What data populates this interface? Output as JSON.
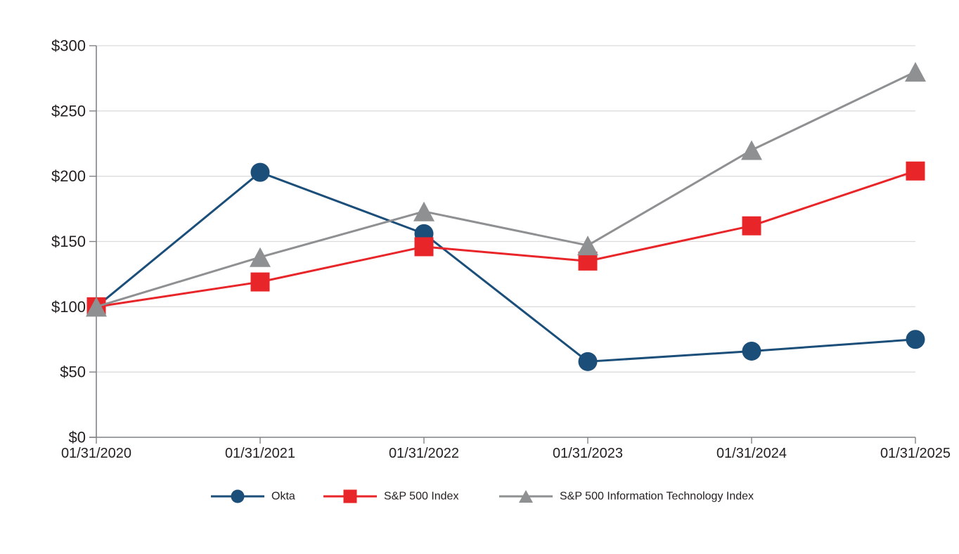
{
  "chart": {
    "title": "",
    "y_axis_prefix": "$"
  },
  "chart_data": {
    "type": "line",
    "title": "",
    "xlabel": "",
    "ylabel": "",
    "x_labels": [
      "01/31/2020",
      "01/31/2021",
      "01/31/2022",
      "01/31/2023",
      "01/31/2024",
      "01/31/2025"
    ],
    "y_tick_labels": [
      "$0",
      "$50",
      "$100",
      "$150",
      "$200",
      "$250",
      "$300"
    ],
    "y_tick_values": [
      0,
      50,
      100,
      150,
      200,
      250,
      300
    ],
    "ylim": [
      0,
      300
    ],
    "grid": true,
    "legend_position": "bottom",
    "series": [
      {
        "name": "Okta",
        "marker": "circle",
        "color": "#1b4e79",
        "values": [
          100,
          203,
          156,
          58,
          66,
          75
        ]
      },
      {
        "name": "S&P 500 Index",
        "marker": "square",
        "color": "#e82529",
        "values": [
          100,
          119,
          146,
          135,
          162,
          204
        ]
      },
      {
        "name": "S&P 500 Information Technology Index",
        "marker": "triangle",
        "color": "#8e9092",
        "values": [
          100,
          138,
          173,
          147,
          220,
          280
        ]
      }
    ],
    "style": {
      "grid_color": "#dcdcdc",
      "axis_color": "#808285",
      "text_color": "#231f20",
      "background_color": "#ffffff"
    }
  }
}
